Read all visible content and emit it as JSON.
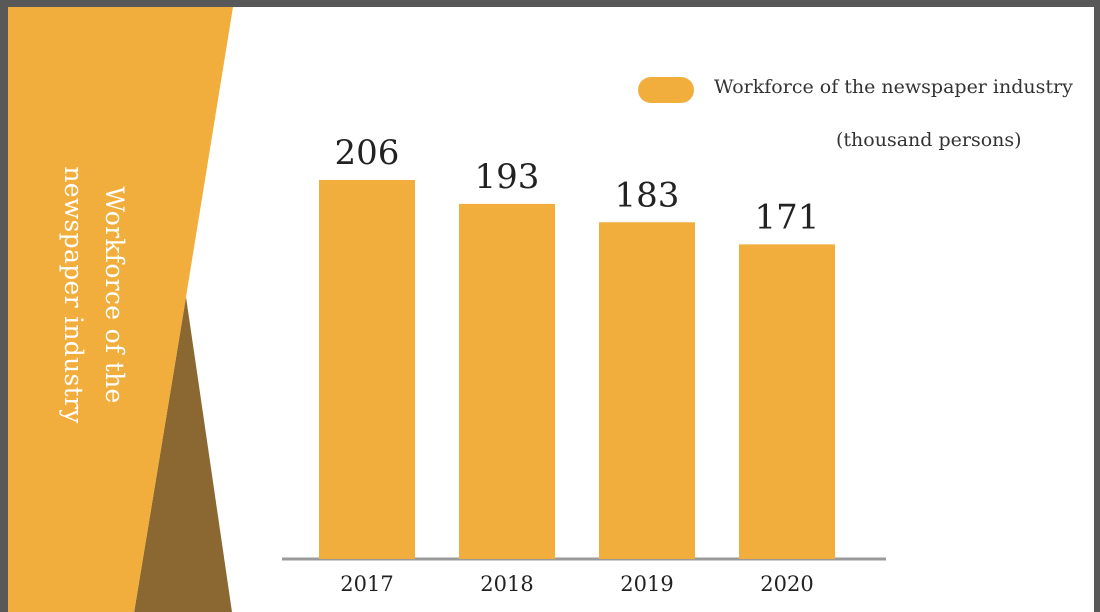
{
  "side_title": {
    "line1": "Workforce of the",
    "line2": "newspaper industry"
  },
  "legend": {
    "label": "Workforce of the newspaper industry",
    "unit": "(thousand persons)"
  },
  "colors": {
    "bar": "#F2AE3D",
    "triangle_dark": "#8B6731",
    "frame": "#585858",
    "axis": "#9a9a9a"
  },
  "chart_data": {
    "type": "bar",
    "categories": [
      "2017",
      "2018",
      "2019",
      "2020"
    ],
    "series": [
      {
        "name": "Workforce of the newspaper industry",
        "values": [
          206,
          193,
          183,
          171
        ]
      }
    ],
    "unit": "(thousand persons)",
    "data_labels": true,
    "grid": false,
    "legend_position": "top-right"
  }
}
